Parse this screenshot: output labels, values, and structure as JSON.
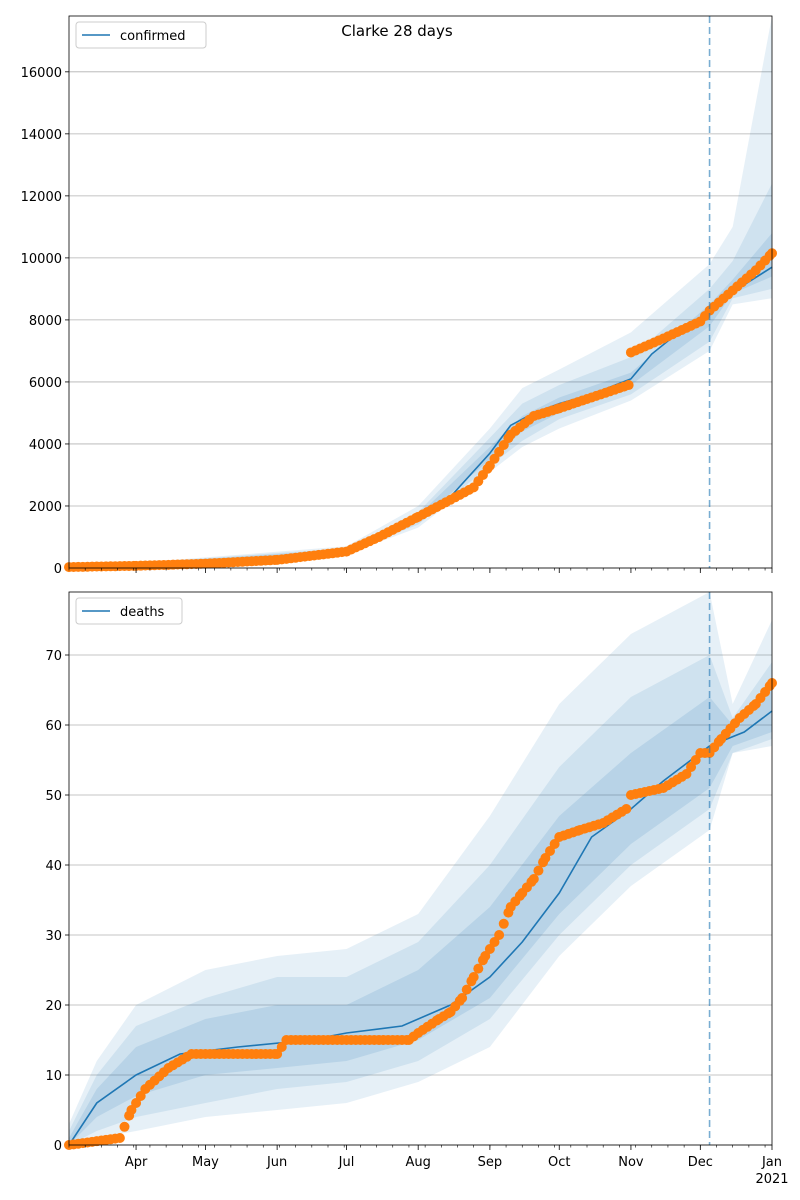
{
  "title": "Clarke 28 days",
  "colors": {
    "model": "#1f77b4",
    "observed": "#ff7f0e",
    "grid": "#b0b0b0",
    "band": "#1f77b4"
  },
  "x_axis": {
    "ticks": [
      {
        "label": "Apr",
        "sub": ""
      },
      {
        "label": "May",
        "sub": ""
      },
      {
        "label": "Jun",
        "sub": ""
      },
      {
        "label": "Jul",
        "sub": ""
      },
      {
        "label": "Aug",
        "sub": ""
      },
      {
        "label": "Sep",
        "sub": ""
      },
      {
        "label": "Oct",
        "sub": ""
      },
      {
        "label": "Nov",
        "sub": ""
      },
      {
        "label": "Dec",
        "sub": ""
      },
      {
        "label": "Jan",
        "sub": "2021"
      }
    ]
  },
  "chart_data": [
    {
      "type": "line",
      "legend": "confirmed",
      "legend_position": "top-left",
      "grid": "horizontal",
      "xlim": [
        "2020-03-03",
        "2021-01-01"
      ],
      "ylim": [
        0,
        17800
      ],
      "yticks": [
        0,
        2000,
        4000,
        6000,
        8000,
        10000,
        12000,
        14000,
        16000
      ],
      "forecast_start": "2020-12-05",
      "model": {
        "x": [
          "2020-03-03",
          "2020-04-01",
          "2020-05-01",
          "2020-06-01",
          "2020-07-01",
          "2020-07-15",
          "2020-08-01",
          "2020-08-15",
          "2020-09-01",
          "2020-09-10",
          "2020-09-20",
          "2020-10-01",
          "2020-10-15",
          "2020-11-01",
          "2020-11-10",
          "2020-11-20",
          "2020-12-05",
          "2020-12-15",
          "2021-01-01"
        ],
        "y": [
          0,
          60,
          130,
          250,
          550,
          1000,
          1600,
          2300,
          3700,
          4600,
          5000,
          5300,
          5600,
          6100,
          6900,
          7500,
          8200,
          8900,
          9700
        ]
      },
      "band_outer": {
        "x": [
          "2020-03-03",
          "2020-07-01",
          "2020-08-01",
          "2020-09-01",
          "2020-09-15",
          "2020-10-01",
          "2020-11-01",
          "2020-12-05",
          "2020-12-15",
          "2021-01-01"
        ],
        "low": [
          0,
          450,
          1300,
          3100,
          3900,
          4500,
          5400,
          7000,
          8500,
          8700
        ],
        "high": [
          0,
          700,
          2000,
          4500,
          5800,
          6400,
          7600,
          9800,
          11000,
          17800
        ]
      },
      "band_mid": {
        "x": [
          "2020-03-03",
          "2020-07-01",
          "2020-08-01",
          "2020-09-01",
          "2020-09-15",
          "2020-10-01",
          "2020-11-01",
          "2020-12-05",
          "2020-12-15",
          "2021-01-01"
        ],
        "low": [
          0,
          500,
          1400,
          3300,
          4100,
          4800,
          5600,
          7300,
          8700,
          9000
        ],
        "high": [
          0,
          640,
          1800,
          4200,
          5300,
          5900,
          6800,
          9000,
          9900,
          12400
        ]
      },
      "band_inner": {
        "x": [
          "2020-03-03",
          "2020-07-01",
          "2020-08-01",
          "2020-09-01",
          "2020-09-15",
          "2020-10-01",
          "2020-11-01",
          "2020-12-05",
          "2020-12-15",
          "2021-01-01"
        ],
        "low": [
          0,
          540,
          1500,
          3500,
          4400,
          5000,
          5900,
          7800,
          8850,
          9400
        ],
        "high": [
          0,
          600,
          1700,
          3900,
          4900,
          5500,
          6300,
          8500,
          9300,
          10800
        ]
      },
      "observed": {
        "x": [
          "2020-03-03",
          "2020-04-01",
          "2020-05-01",
          "2020-06-01",
          "2020-07-01",
          "2020-07-15",
          "2020-08-01",
          "2020-08-15",
          "2020-08-25",
          "2020-09-01",
          "2020-09-10",
          "2020-09-20",
          "2020-10-01",
          "2020-10-15",
          "2020-10-31",
          "2020-11-01",
          "2020-11-15",
          "2020-12-01",
          "2020-12-05",
          "2020-12-15",
          "2020-12-25",
          "2021-01-01"
        ],
        "y": [
          30,
          70,
          140,
          260,
          530,
          1000,
          1650,
          2200,
          2600,
          3300,
          4300,
          4900,
          5150,
          5500,
          5900,
          6950,
          7400,
          7950,
          8300,
          8950,
          9600,
          10150
        ]
      }
    },
    {
      "type": "line",
      "legend": "deaths",
      "legend_position": "top-left",
      "grid": "horizontal",
      "xlim": [
        "2020-03-03",
        "2021-01-01"
      ],
      "ylim": [
        0,
        79
      ],
      "yticks": [
        0,
        10,
        20,
        30,
        40,
        50,
        60,
        70
      ],
      "forecast_start": "2020-12-05",
      "model": {
        "x": [
          "2020-03-03",
          "2020-03-15",
          "2020-04-01",
          "2020-04-20",
          "2020-05-15",
          "2020-06-15",
          "2020-07-01",
          "2020-07-25",
          "2020-08-15",
          "2020-09-01",
          "2020-09-15",
          "2020-10-01",
          "2020-10-15",
          "2020-11-01",
          "2020-11-15",
          "2020-12-05",
          "2020-12-20",
          "2021-01-01"
        ],
        "y": [
          0,
          6,
          10,
          13,
          14,
          15,
          16,
          17,
          20,
          24,
          29,
          36,
          44,
          48,
          52,
          57,
          59,
          62
        ]
      },
      "band_outer": {
        "x": [
          "2020-03-03",
          "2020-03-15",
          "2020-04-01",
          "2020-05-01",
          "2020-06-01",
          "2020-07-01",
          "2020-08-01",
          "2020-09-01",
          "2020-10-01",
          "2020-11-01",
          "2020-12-05",
          "2020-12-15",
          "2021-01-01"
        ],
        "low": [
          0,
          1,
          2,
          4,
          5,
          6,
          9,
          14,
          27,
          37,
          45,
          56,
          57
        ],
        "high": [
          3,
          12,
          20,
          25,
          27,
          28,
          33,
          47,
          63,
          73,
          79,
          63,
          75
        ]
      },
      "band_mid": {
        "x": [
          "2020-03-03",
          "2020-03-15",
          "2020-04-01",
          "2020-05-01",
          "2020-06-01",
          "2020-07-01",
          "2020-08-01",
          "2020-09-01",
          "2020-10-01",
          "2020-11-01",
          "2020-12-05",
          "2020-12-15",
          "2021-01-01"
        ],
        "low": [
          0,
          2,
          4,
          6,
          8,
          9,
          12,
          18,
          30,
          40,
          48,
          56,
          58
        ],
        "high": [
          2,
          10,
          17,
          21,
          24,
          24,
          29,
          40,
          54,
          64,
          70,
          61,
          69
        ]
      },
      "band_inner": {
        "x": [
          "2020-03-03",
          "2020-03-15",
          "2020-04-01",
          "2020-05-01",
          "2020-06-01",
          "2020-07-01",
          "2020-08-01",
          "2020-09-01",
          "2020-10-01",
          "2020-11-01",
          "2020-12-05",
          "2020-12-15",
          "2021-01-01"
        ],
        "low": [
          0,
          4,
          7,
          10,
          11,
          12,
          15,
          21,
          33,
          43,
          51,
          57,
          59
        ],
        "high": [
          1,
          8,
          14,
          18,
          20,
          20,
          25,
          34,
          47,
          56,
          64,
          60,
          66
        ]
      },
      "observed": {
        "x": [
          "2020-03-03",
          "2020-03-25",
          "2020-03-30",
          "2020-04-05",
          "2020-04-15",
          "2020-04-25",
          "2020-05-15",
          "2020-06-01",
          "2020-06-03",
          "2020-06-05",
          "2020-07-01",
          "2020-07-28",
          "2020-08-01",
          "2020-08-10",
          "2020-08-15",
          "2020-08-20",
          "2020-08-25",
          "2020-08-30",
          "2020-09-05",
          "2020-09-10",
          "2020-09-15",
          "2020-09-20",
          "2020-09-25",
          "2020-10-01",
          "2020-10-10",
          "2020-10-20",
          "2020-10-30",
          "2020-11-01",
          "2020-11-15",
          "2020-11-25",
          "2020-12-01",
          "2020-12-05",
          "2020-12-10",
          "2020-12-18",
          "2020-12-25",
          "2021-01-01"
        ],
        "y": [
          0,
          1,
          5,
          8,
          11,
          13,
          13,
          13,
          14,
          15,
          15,
          15,
          16,
          18,
          19,
          21,
          24,
          27,
          30,
          34,
          36,
          38,
          41,
          44,
          45,
          46,
          48,
          50,
          51,
          53,
          56,
          56,
          58,
          61,
          63,
          66
        ]
      }
    }
  ]
}
